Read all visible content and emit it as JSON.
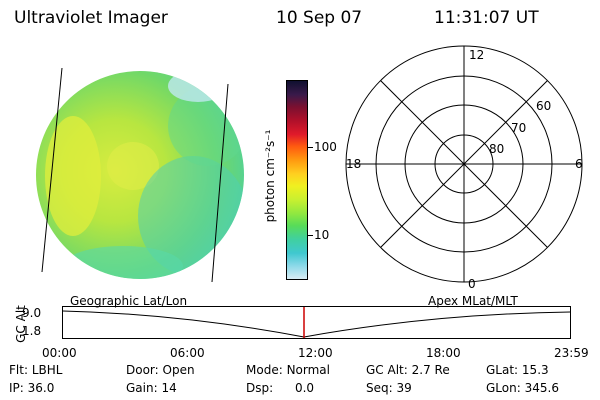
{
  "header": {
    "title": "Ultraviolet Imager",
    "date": "10 Sep 07",
    "time": "11:31:07 UT"
  },
  "colorbar": {
    "unit_label": "photon cm⁻²s⁻¹",
    "scale": "log",
    "ticks": [
      "100",
      "10"
    ],
    "colors": [
      "#101030",
      "#3a1a4a",
      "#7a1030",
      "#b0102a",
      "#e01a2a",
      "#ff5a10",
      "#ff9a10",
      "#ffd020",
      "#f0f020",
      "#c8f030",
      "#90e840",
      "#58dc58",
      "#40d0a0",
      "#40c8d0",
      "#88d8e8",
      "#d8ecf4"
    ]
  },
  "polar_plot": {
    "mlt_labels": {
      "top": "12",
      "left": "18",
      "right": "6",
      "bottom": "0"
    },
    "lat_labels": [
      "60",
      "70",
      "80"
    ]
  },
  "timeline": {
    "left_label": "Geographic Lat/Lon",
    "right_label": "Apex MLat/MLT",
    "y_axis_label": "GC Alt",
    "y_ticks": [
      "9.0",
      "1.8"
    ],
    "x_ticks": [
      "00:00",
      "06:00",
      "12:00",
      "18:00",
      "23:59"
    ],
    "cursor_color": "#cc0000"
  },
  "footer": {
    "row1": [
      {
        "key": "Flt:",
        "value": "LBHL"
      },
      {
        "key": "Door:",
        "value": "Open"
      },
      {
        "key": "Mode:",
        "value": "Normal"
      },
      {
        "key": "GC Alt:",
        "value": "2.7 Re"
      },
      {
        "key": "GLat:",
        "value": "15.3"
      }
    ],
    "row2": [
      {
        "key": "IP:",
        "value": "36.0"
      },
      {
        "key": "Gain:",
        "value": "14"
      },
      {
        "key": "Dsp:",
        "value": "0.0"
      },
      {
        "key": "Seq:",
        "value": "39"
      },
      {
        "key": "GLon:",
        "value": "345.6"
      }
    ]
  }
}
